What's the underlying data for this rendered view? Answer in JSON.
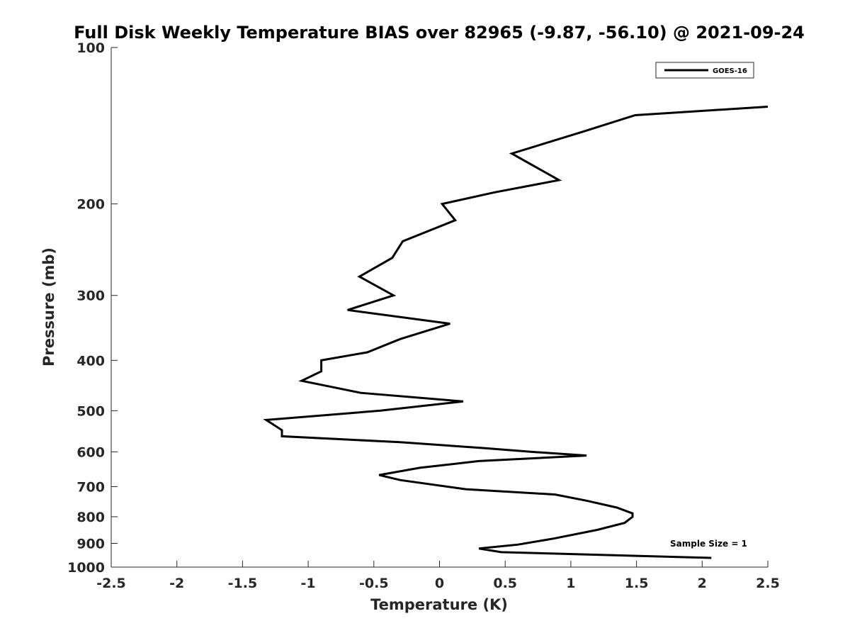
{
  "chart_data": {
    "type": "line",
    "title": "Full Disk Weekly Temperature BIAS over 82965 (-9.87, -56.10) @ 2021-09-24",
    "xlabel": "Temperature (K)",
    "ylabel": "Pressure (mb)",
    "xlim": [
      -2.5,
      2.5
    ],
    "ylim": [
      100,
      1000
    ],
    "y_scale": "log",
    "y_reversed": true,
    "xticks": [
      -2.5,
      -2,
      -1.5,
      -1,
      -0.5,
      0,
      0.5,
      1,
      1.5,
      2,
      2.5
    ],
    "xtick_labels": [
      "-2.5",
      "-2",
      "-1.5",
      "-1",
      "-0.5",
      "0",
      "0.5",
      "1",
      "1.5",
      "2",
      "2.5"
    ],
    "yticks": [
      100,
      200,
      300,
      400,
      500,
      600,
      700,
      800,
      900,
      1000
    ],
    "ytick_labels": [
      "100",
      "200",
      "300",
      "400",
      "500",
      "600",
      "700",
      "800",
      "900",
      "1000"
    ],
    "grid": false,
    "legend_position": "top-right",
    "annotation": "Sample Size = 1",
    "series": [
      {
        "name": "GOES-16",
        "color": "#000000",
        "points": [
          {
            "t": 2.5,
            "p": 130
          },
          {
            "t": 1.49,
            "p": 135
          },
          {
            "t": 1.1,
            "p": 145
          },
          {
            "t": 0.55,
            "p": 160
          },
          {
            "t": 0.91,
            "p": 180
          },
          {
            "t": 0.42,
            "p": 190
          },
          {
            "t": 0.02,
            "p": 200
          },
          {
            "t": 0.12,
            "p": 215
          },
          {
            "t": -0.28,
            "p": 236
          },
          {
            "t": -0.36,
            "p": 254
          },
          {
            "t": -0.61,
            "p": 276
          },
          {
            "t": -0.35,
            "p": 300
          },
          {
            "t": -0.7,
            "p": 320
          },
          {
            "t": 0.08,
            "p": 340
          },
          {
            "t": -0.3,
            "p": 364
          },
          {
            "t": -0.55,
            "p": 386
          },
          {
            "t": -0.9,
            "p": 400
          },
          {
            "t": -0.9,
            "p": 420
          },
          {
            "t": -1.05,
            "p": 438
          },
          {
            "t": -0.6,
            "p": 462
          },
          {
            "t": 0.18,
            "p": 480
          },
          {
            "t": -0.45,
            "p": 500
          },
          {
            "t": -1.32,
            "p": 521
          },
          {
            "t": -1.2,
            "p": 545
          },
          {
            "t": -1.2,
            "p": 560
          },
          {
            "t": -0.3,
            "p": 575
          },
          {
            "t": 0.33,
            "p": 590
          },
          {
            "t": 0.7,
            "p": 600
          },
          {
            "t": 1.12,
            "p": 610
          },
          {
            "t": 0.3,
            "p": 625
          },
          {
            "t": -0.15,
            "p": 644
          },
          {
            "t": -0.46,
            "p": 665
          },
          {
            "t": -0.3,
            "p": 680
          },
          {
            "t": 0.2,
            "p": 708
          },
          {
            "t": 0.88,
            "p": 725
          },
          {
            "t": 1.12,
            "p": 745
          },
          {
            "t": 1.35,
            "p": 768
          },
          {
            "t": 1.47,
            "p": 788
          },
          {
            "t": 1.47,
            "p": 800
          },
          {
            "t": 1.41,
            "p": 822
          },
          {
            "t": 1.2,
            "p": 848
          },
          {
            "t": 0.87,
            "p": 881
          },
          {
            "t": 0.6,
            "p": 905
          },
          {
            "t": 0.3,
            "p": 921
          },
          {
            "t": 0.47,
            "p": 936
          },
          {
            "t": 2.07,
            "p": 960
          }
        ]
      }
    ]
  }
}
